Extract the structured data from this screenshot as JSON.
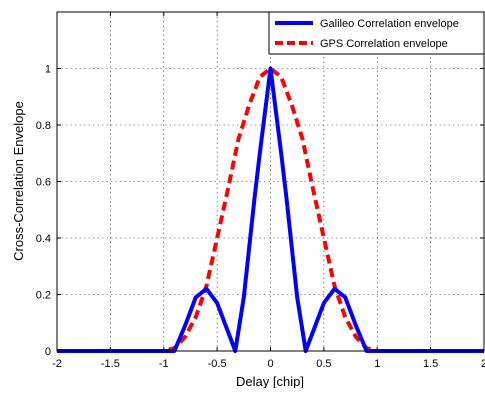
{
  "chart_data": {
    "type": "line",
    "title": "",
    "xlabel": "Delay [chip]",
    "ylabel": "Cross-Correlation Envelope",
    "xlim": [
      -2,
      2
    ],
    "ylim": [
      0,
      1.2
    ],
    "grid": true,
    "legend_position": "top-right",
    "x_ticks": [
      -2,
      -1.5,
      -1,
      -0.5,
      0,
      0.5,
      1,
      1.5,
      2
    ],
    "x_tick_labels": [
      "-2",
      "-1.5",
      "-1",
      "-0.5",
      "0",
      "0.5",
      "1",
      "1.5",
      "2"
    ],
    "y_ticks": [
      0,
      0.2,
      0.4,
      0.6,
      0.8,
      1
    ],
    "y_tick_labels": [
      "0",
      "0.2",
      "0.4",
      "0.6",
      "0.8",
      "1"
    ],
    "series": [
      {
        "name": "Galileo Correlation envelope",
        "color": "#0000ff",
        "style": "solid",
        "x": [
          -2,
          -1,
          -0.9,
          -0.8,
          -0.7,
          -0.6,
          -0.5,
          -0.4,
          -0.35,
          -0.33,
          -0.25,
          -0.15,
          -0.1,
          -0.05,
          0,
          0.05,
          0.1,
          0.15,
          0.25,
          0.33,
          0.35,
          0.4,
          0.5,
          0.6,
          0.7,
          0.8,
          0.9,
          1,
          2
        ],
        "y": [
          0,
          0,
          0,
          0.09,
          0.19,
          0.22,
          0.17,
          0.07,
          0.02,
          0,
          0.19,
          0.54,
          0.7,
          0.85,
          1,
          0.85,
          0.7,
          0.54,
          0.19,
          0,
          0.02,
          0.07,
          0.17,
          0.22,
          0.19,
          0.09,
          0,
          0,
          0
        ]
      },
      {
        "name": "GPS Correlation envelope",
        "color": "#ff0000",
        "style": "dashed",
        "x": [
          -2,
          -1,
          -0.9,
          -0.8,
          -0.7,
          -0.6,
          -0.5,
          -0.4,
          -0.3,
          -0.2,
          -0.1,
          0,
          0.1,
          0.2,
          0.3,
          0.4,
          0.5,
          0.6,
          0.7,
          0.8,
          0.9,
          1,
          2
        ],
        "y": [
          0,
          0,
          0.01,
          0.05,
          0.12,
          0.23,
          0.4,
          0.57,
          0.75,
          0.87,
          0.97,
          1,
          0.97,
          0.87,
          0.75,
          0.57,
          0.4,
          0.23,
          0.12,
          0.05,
          0.01,
          0,
          0
        ]
      }
    ]
  }
}
